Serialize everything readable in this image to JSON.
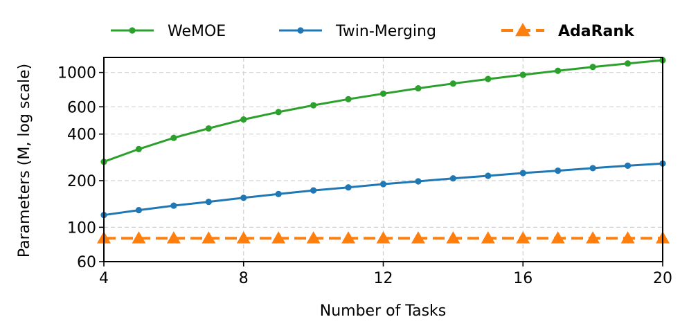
{
  "chart_data": {
    "type": "line",
    "xlabel": "Number of Tasks",
    "ylabel": "Parameters (M, log scale)",
    "x": [
      4,
      5,
      6,
      7,
      8,
      9,
      10,
      11,
      12,
      13,
      14,
      15,
      16,
      17,
      18,
      19,
      20
    ],
    "xlim": [
      4,
      20
    ],
    "xticks": [
      4,
      8,
      12,
      16,
      20
    ],
    "xtick_labels": [
      "4",
      "8",
      "12",
      "16",
      "20"
    ],
    "ylim": [
      60,
      1250
    ],
    "yscale": "log",
    "yticks": [
      60,
      100,
      200,
      400,
      600,
      1000
    ],
    "ytick_labels": [
      "60",
      "100",
      "200",
      "400",
      "600",
      "1000"
    ],
    "grid": true,
    "legend_position": "top",
    "series": [
      {
        "name": "WeMOE",
        "color": "#2ca02c",
        "style": "solid",
        "marker": "circle",
        "values": [
          265,
          320,
          378,
          435,
          497,
          555,
          614,
          672,
          730,
          790,
          848,
          907,
          965,
          1025,
          1085,
          1143,
          1200
        ]
      },
      {
        "name": "Twin-Merging",
        "color": "#1f77b4",
        "style": "solid",
        "marker": "circle",
        "values": [
          120,
          129,
          138,
          146,
          155,
          164,
          173,
          181,
          190,
          198,
          207,
          215,
          224,
          232,
          241,
          250,
          258
        ]
      },
      {
        "name": "AdaRank",
        "color": "#ff7f0e",
        "style": "dashed",
        "marker": "triangle",
        "bold_label": true,
        "values": [
          85,
          85,
          85,
          85,
          85,
          85,
          85,
          85,
          85,
          85,
          85,
          85,
          85,
          85,
          85,
          85,
          85
        ]
      }
    ]
  }
}
